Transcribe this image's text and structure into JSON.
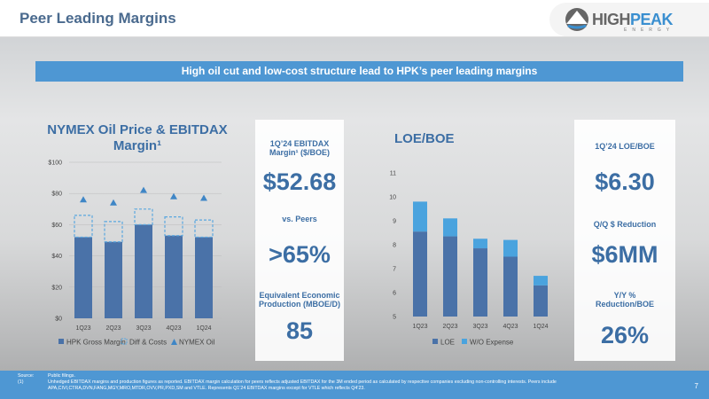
{
  "header": {
    "title": "Peer Leading Margins",
    "logo_main": "HIGH",
    "logo_accent": "PEAK",
    "logo_sub": "ENERGY"
  },
  "banner": "High oil cut and low-cost structure lead to HPK’s peer leading margins",
  "left_card": {
    "label1": "1Q’24 EBITDAX Margin¹ ($/BOE)",
    "value1": "$52.68",
    "label2": "vs. Peers",
    "value2": ">65%",
    "label3": "Equivalent Economic Production (MBOE/D)",
    "value3": "85"
  },
  "right_card": {
    "label1": "1Q’24 LOE/BOE",
    "value1": "$6.30",
    "label2": "Q/Q $ Reduction",
    "value2": "$6MM",
    "label3": "Y/Y % Reduction/BOE",
    "value3": "26%"
  },
  "chart_data": [
    {
      "type": "bar",
      "title": "NYMEX Oil Price & EBITDAX Margin¹",
      "categories": [
        "1Q23",
        "2Q23",
        "3Q23",
        "4Q23",
        "1Q24"
      ],
      "series": [
        {
          "name": "HPK Gross Margin",
          "values": [
            52,
            49,
            60,
            53,
            52
          ]
        },
        {
          "name": "Diff & Costs",
          "values": [
            14,
            13,
            10,
            12,
            11
          ]
        },
        {
          "name": "NYMEX Oil",
          "values": [
            76,
            74,
            82,
            78,
            77
          ]
        }
      ],
      "yticks": [
        "$0",
        "$20",
        "$40",
        "$60",
        "$80",
        "$100"
      ],
      "ylim": [
        0,
        100
      ],
      "colors": [
        "#4a72a8",
        "#5aa7df",
        "#3f86c6"
      ]
    },
    {
      "type": "bar",
      "title": "LOE/BOE",
      "categories": [
        "1Q23",
        "2Q23",
        "3Q23",
        "4Q23",
        "1Q24"
      ],
      "series": [
        {
          "name": "LOE",
          "values": [
            8.55,
            8.35,
            7.85,
            7.5,
            6.3
          ]
        },
        {
          "name": "W/O Expense",
          "values": [
            1.25,
            0.75,
            0.4,
            0.7,
            0.4
          ]
        }
      ],
      "yticks": [
        "5",
        "6",
        "7",
        "8",
        "9",
        "10",
        "11"
      ],
      "ylim": [
        5,
        11
      ],
      "colors": [
        "#4a72a8",
        "#4aa3de"
      ]
    }
  ],
  "footer": {
    "source_key": "Source:",
    "source": "Public filings.",
    "note_key": "(1)",
    "note1": "Unhedged EBITDAX margins and production figures as reported. EBITDAX margin calculation for peers reflects adjusted EBITDAX for the 3M ended period as calculated by respective companies excluding non-controlling interests. Peers include",
    "note2": "APA,CIVI,CTRA,DVN,FANG,MGY,MRO,MTDR,OVV,PR,PXD,SM and VTLE.  Represents Q1’24 EBITDAX margins except for VTLE which reflects Q4’23.",
    "page": "7"
  }
}
